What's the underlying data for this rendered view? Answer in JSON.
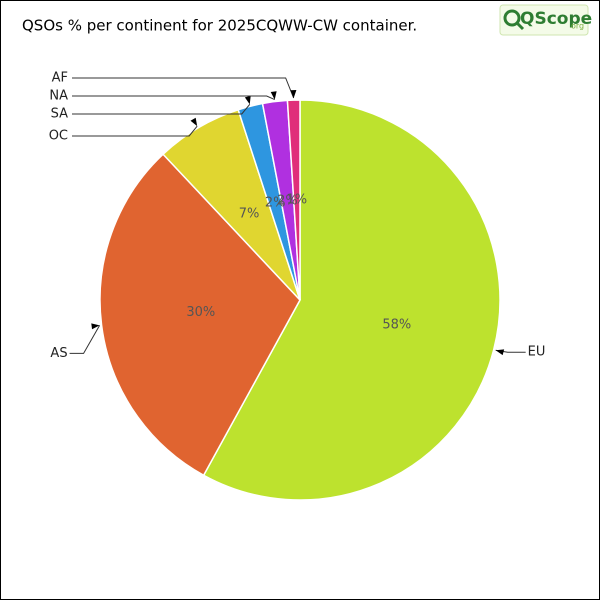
{
  "chart_data": {
    "type": "pie",
    "title": "QSOs % per continent for 2025CQWW-CW container.",
    "logo": {
      "text": "QScope",
      "suffix": "org"
    },
    "categories": [
      "EU",
      "AS",
      "OC",
      "SA",
      "NA",
      "AF"
    ],
    "values": [
      58,
      30,
      7,
      2,
      2,
      1
    ],
    "value_labels": [
      "58%",
      "30%",
      "7%",
      "2%",
      "2%",
      "1%"
    ],
    "colors": [
      "#bde22e",
      "#e06430",
      "#e0d630",
      "#2e96e0",
      "#b030e0",
      "#e02e7a"
    ]
  }
}
